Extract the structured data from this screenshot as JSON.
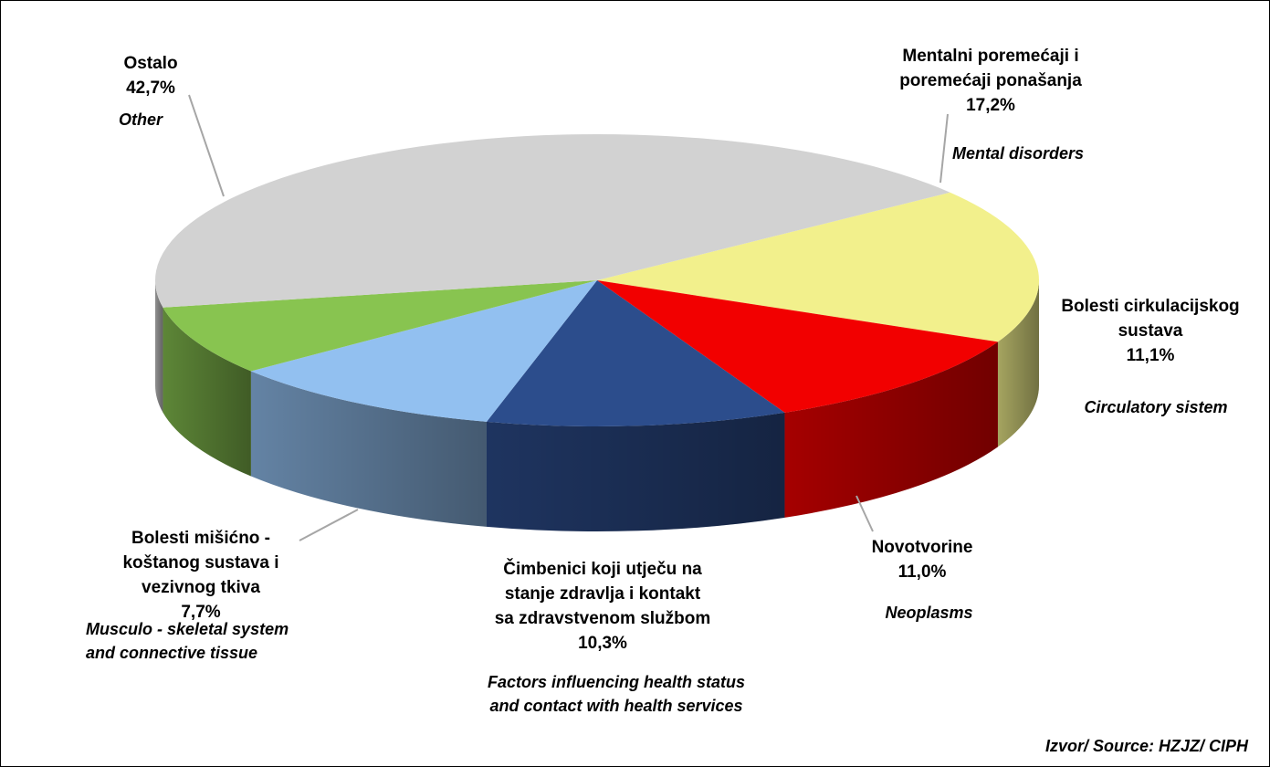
{
  "chart_data": {
    "type": "pie",
    "style": "3d",
    "slices": [
      {
        "label": "Mentalni poremećaji i poremećaji ponašanja",
        "label_en": "Mental disorders",
        "value": 17.2,
        "value_label": "17,2%",
        "color": "#F2F08C"
      },
      {
        "label": "Bolesti cirkulacijskog sustava",
        "label_en": "Circulatory sistem",
        "value": 11.1,
        "value_label": "11,1%",
        "color": "#F20000"
      },
      {
        "label": "Novotvorine",
        "label_en": "Neoplasms",
        "value": 11.0,
        "value_label": "11,0%",
        "color": "#2C4D8C"
      },
      {
        "label": "Čimbenici koji utječu na stanje zdravlja i kontakt sa zdravstvenom službom",
        "label_en": "Factors influencing health status and contact with health services",
        "value": 10.3,
        "value_label": "10,3%",
        "color": "#92C0F0"
      },
      {
        "label": "Bolesti mišićno - koštanog sustava i vezivnog tkiva",
        "label_en": "Musculo - skeletal system and connective tissue",
        "value": 7.7,
        "value_label": "7,7%",
        "color": "#88C450"
      },
      {
        "label": "Ostalo",
        "label_en": "Other",
        "value": 42.7,
        "value_label": "42,7%",
        "color": "#D2D2D2"
      }
    ]
  },
  "labels": {
    "mental": {
      "name": "Mentalni poremećaji i\nporemećaji ponašanja",
      "pct": "17,2%",
      "en": "Mental disorders"
    },
    "circ": {
      "name": "Bolesti cirkulacijskog\nsustava",
      "pct": "11,1%",
      "en": "Circulatory sistem"
    },
    "neo": {
      "name": "Novotvorine",
      "pct": "11,0%",
      "en": "Neoplasms"
    },
    "factors": {
      "name": "Čimbenici koji utječu na\nstanje zdravlja i kontakt\nsa zdravstvenom službom",
      "pct": "10,3%",
      "en": "Factors influencing health status\nand contact with health services"
    },
    "musc": {
      "name": "Bolesti mišićno -\nkoštanog sustava i\nvezivnog tkiva",
      "pct": "7,7%",
      "en": "Musculo - skeletal system\nand connective tissue"
    },
    "other": {
      "name": "Ostalo",
      "pct": "42,7%",
      "en": "Other"
    }
  },
  "source": "Izvor/ Source: HZJZ/ CIPH"
}
